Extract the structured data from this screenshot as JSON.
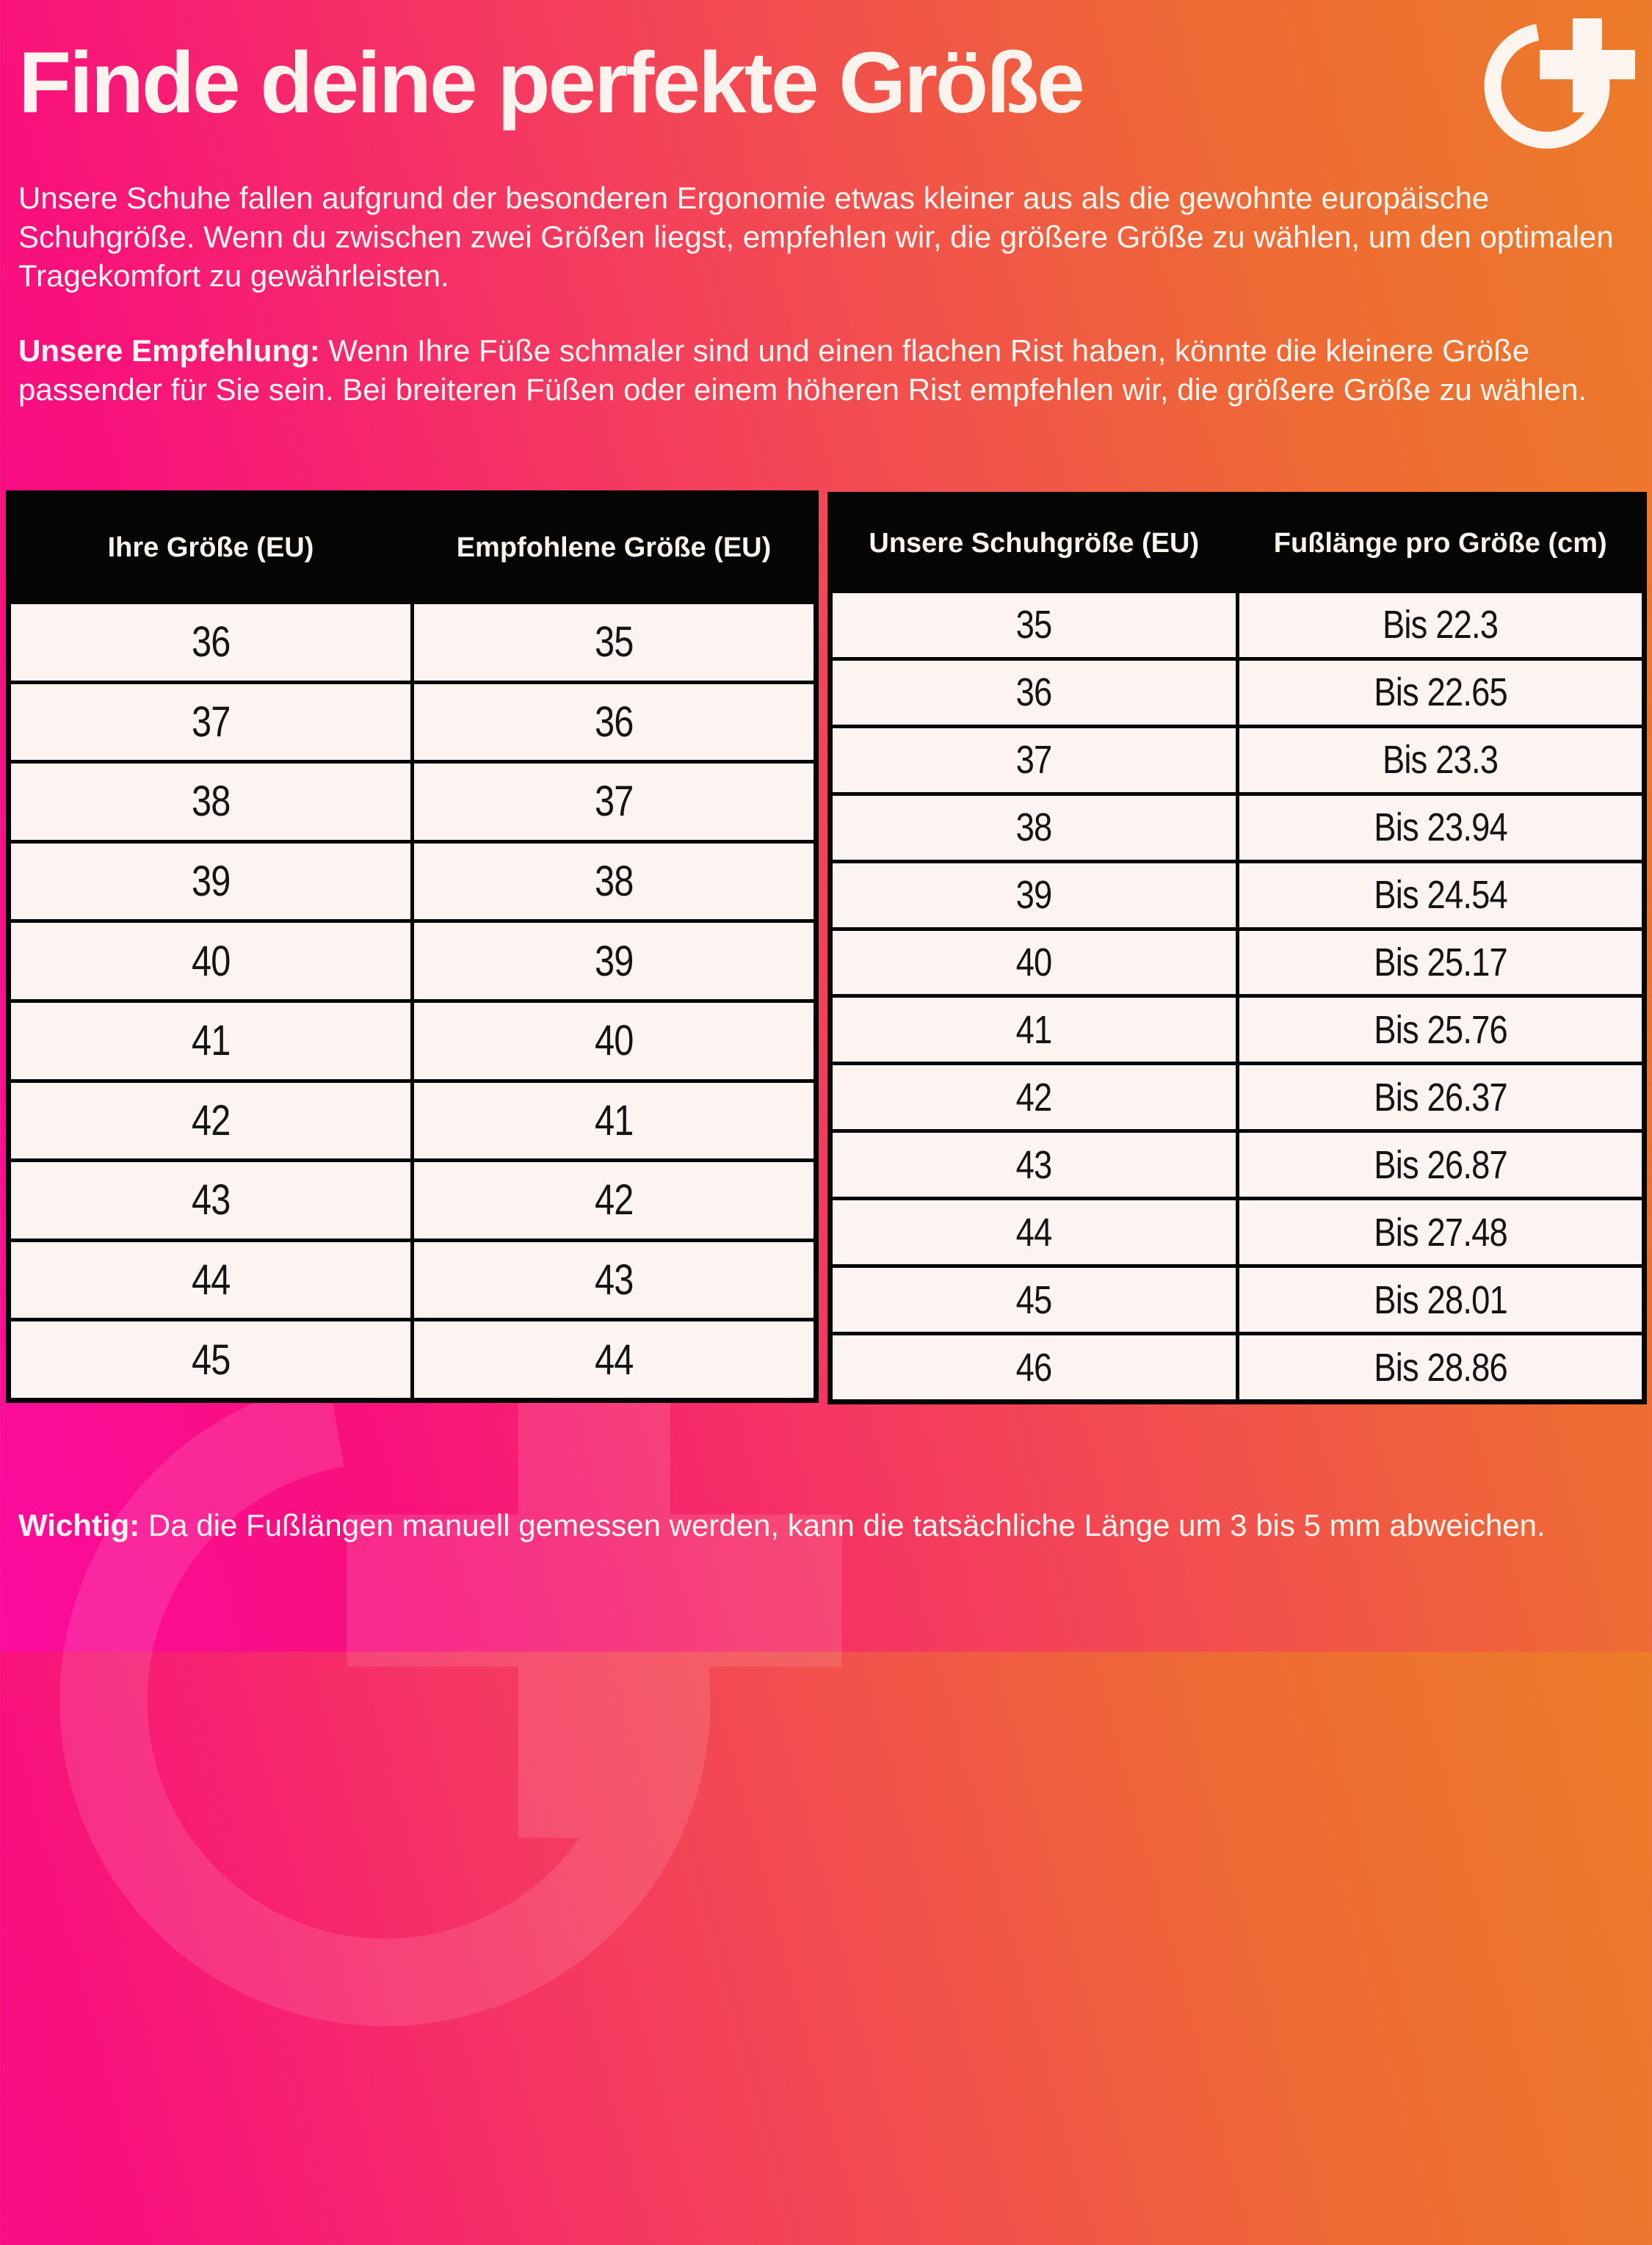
{
  "page": {
    "title": "Finde deine perfekte Größe",
    "intro": "Unsere Schuhe fallen aufgrund der besonderen Ergonomie etwas kleiner aus als die gewohnte europäische Schuhgröße. Wenn du zwischen zwei Größen liegst, empfehlen wir, die größere Größe zu wählen, um den optimalen Tragekomfort zu gewährleisten.",
    "recommendation_label": "Unsere Empfehlung:",
    "recommendation_text": " Wenn Ihre Füße schmaler sind und einen flachen Rist haben, könnte die kleinere Größe passender für Sie sein. Bei breiteren Füßen oder einem höheren Rist empfehlen wir, die größere Größe zu wählen.",
    "note_label": "Wichtig:",
    "note_text": " Da die Fußlängen manuell gemessen werden, kann die tatsächliche Länge um 3 bis 5 mm abweichen."
  },
  "logo": {
    "icon": "o-plus-logo"
  },
  "colors": {
    "gradient_start": "#fb0b9f",
    "gradient_mid_pink": "#f8107c",
    "gradient_mid_red": "#f43f5c",
    "gradient_end": "#ec7c29",
    "table_header_bg": "#050505",
    "table_cell_bg": "#fbf4f0",
    "text_light": "#fcf5f0",
    "text_dark": "#141414"
  },
  "size_table": {
    "headers": [
      "Ihre Größe (EU)",
      "Empfohlene Größe (EU)"
    ],
    "rows": [
      [
        "36",
        "35"
      ],
      [
        "37",
        "36"
      ],
      [
        "38",
        "37"
      ],
      [
        "39",
        "38"
      ],
      [
        "40",
        "39"
      ],
      [
        "41",
        "40"
      ],
      [
        "42",
        "41"
      ],
      [
        "43",
        "42"
      ],
      [
        "44",
        "43"
      ],
      [
        "45",
        "44"
      ]
    ]
  },
  "length_table": {
    "headers": [
      "Unsere Schuhgröße (EU)",
      "Fußlänge pro Größe (cm)"
    ],
    "rows": [
      [
        "35",
        "Bis 22.3"
      ],
      [
        "36",
        "Bis 22.65"
      ],
      [
        "37",
        "Bis 23.3"
      ],
      [
        "38",
        "Bis 23.94"
      ],
      [
        "39",
        "Bis 24.54"
      ],
      [
        "40",
        "Bis 25.17"
      ],
      [
        "41",
        "Bis 25.76"
      ],
      [
        "42",
        "Bis 26.37"
      ],
      [
        "43",
        "Bis 26.87"
      ],
      [
        "44",
        "Bis 27.48"
      ],
      [
        "45",
        "Bis 28.01"
      ],
      [
        "46",
        "Bis 28.86"
      ]
    ]
  }
}
